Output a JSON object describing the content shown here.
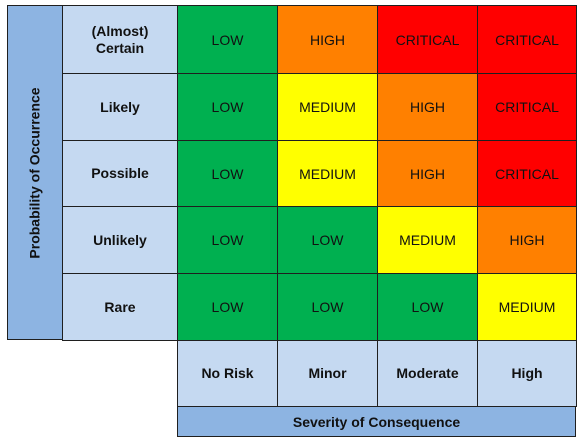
{
  "y_axis_title": "Probability of Occurrence",
  "x_axis_title": "Severity of Consequence",
  "probability_levels": [
    "(Almost)\nCertain",
    "Likely",
    "Possible",
    "Unlikely",
    "Rare"
  ],
  "severity_levels": [
    "No Risk",
    "Minor",
    "Moderate",
    "High"
  ],
  "matrix": [
    [
      "LOW",
      "HIGH",
      "CRITICAL",
      "CRITICAL"
    ],
    [
      "LOW",
      "MEDIUM",
      "HIGH",
      "CRITICAL"
    ],
    [
      "LOW",
      "MEDIUM",
      "HIGH",
      "CRITICAL"
    ],
    [
      "LOW",
      "LOW",
      "MEDIUM",
      "HIGH"
    ],
    [
      "LOW",
      "LOW",
      "LOW",
      "MEDIUM"
    ]
  ],
  "risk_colors": {
    "LOW": "#00b050",
    "MEDIUM": "#ffff00",
    "HIGH": "#ff8000",
    "CRITICAL": "#ff0000"
  }
}
